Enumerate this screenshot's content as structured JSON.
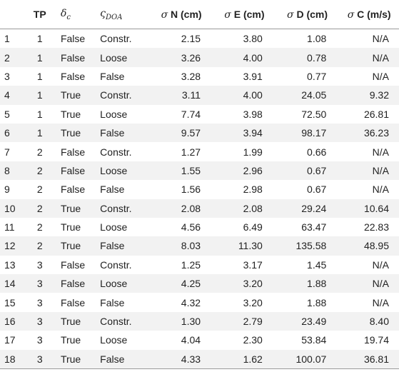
{
  "table": {
    "headers": {
      "idx": "",
      "tp": "TP",
      "delta_c": "δ",
      "delta_c_sub": "c",
      "doa": "ς",
      "doa_sub": "DOA",
      "sigma_n_sym": "σ",
      "sigma_n_label": "N (cm)",
      "sigma_e_sym": "σ",
      "sigma_e_label": "E (cm)",
      "sigma_d_sym": "σ",
      "sigma_d_label": "D (cm)",
      "sigma_c_sym": "σ",
      "sigma_c_label": "C (m/s)"
    },
    "rows": [
      [
        "1",
        "1",
        "False",
        "Constr.",
        "2.15",
        "3.80",
        "1.08",
        "N/A"
      ],
      [
        "2",
        "1",
        "False",
        "Loose",
        "3.26",
        "4.00",
        "0.78",
        "N/A"
      ],
      [
        "3",
        "1",
        "False",
        "False",
        "3.28",
        "3.91",
        "0.77",
        "N/A"
      ],
      [
        "4",
        "1",
        "True",
        "Constr.",
        "3.11",
        "4.00",
        "24.05",
        "9.32"
      ],
      [
        "5",
        "1",
        "True",
        "Loose",
        "7.74",
        "3.98",
        "72.50",
        "26.81"
      ],
      [
        "6",
        "1",
        "True",
        "False",
        "9.57",
        "3.94",
        "98.17",
        "36.23"
      ],
      [
        "7",
        "2",
        "False",
        "Constr.",
        "1.27",
        "1.99",
        "0.66",
        "N/A"
      ],
      [
        "8",
        "2",
        "False",
        "Loose",
        "1.55",
        "2.96",
        "0.67",
        "N/A"
      ],
      [
        "9",
        "2",
        "False",
        "False",
        "1.56",
        "2.98",
        "0.67",
        "N/A"
      ],
      [
        "10",
        "2",
        "True",
        "Constr.",
        "2.08",
        "2.08",
        "29.24",
        "10.64"
      ],
      [
        "11",
        "2",
        "True",
        "Loose",
        "4.56",
        "6.49",
        "63.47",
        "22.83"
      ],
      [
        "12",
        "2",
        "True",
        "False",
        "8.03",
        "11.30",
        "135.58",
        "48.95"
      ],
      [
        "13",
        "3",
        "False",
        "Constr.",
        "1.25",
        "3.17",
        "1.45",
        "N/A"
      ],
      [
        "14",
        "3",
        "False",
        "Loose",
        "4.25",
        "3.20",
        "1.88",
        "N/A"
      ],
      [
        "15",
        "3",
        "False",
        "False",
        "4.32",
        "3.20",
        "1.88",
        "N/A"
      ],
      [
        "16",
        "3",
        "True",
        "Constr.",
        "1.30",
        "2.79",
        "23.49",
        "8.40"
      ],
      [
        "17",
        "3",
        "True",
        "Loose",
        "4.04",
        "2.30",
        "53.84",
        "19.74"
      ],
      [
        "18",
        "3",
        "True",
        "False",
        "4.33",
        "1.62",
        "100.07",
        "36.81"
      ]
    ]
  }
}
